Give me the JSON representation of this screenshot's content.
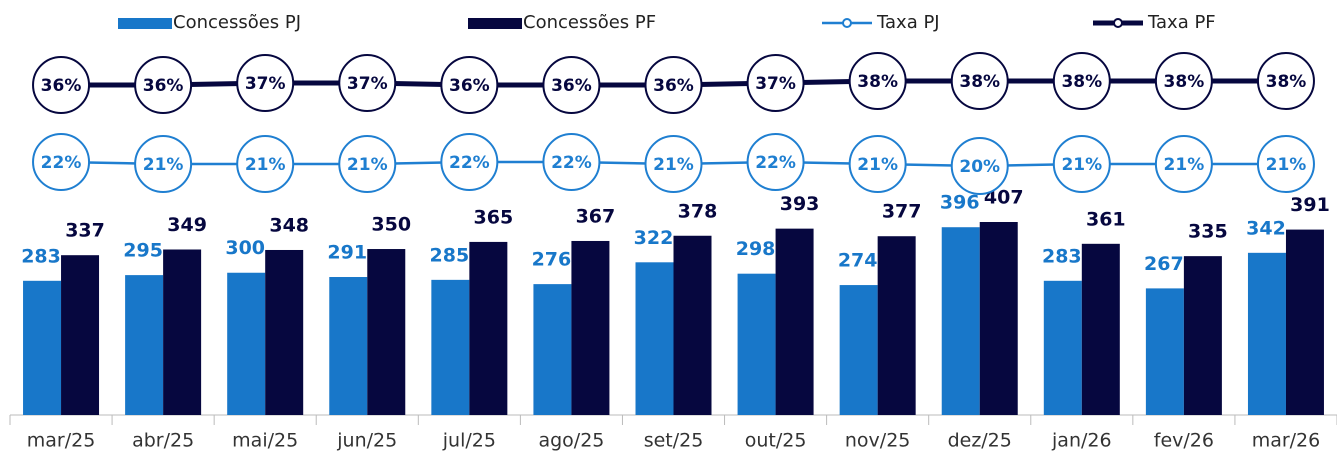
{
  "chart_data": {
    "type": "bar",
    "categories": [
      "mar/25",
      "abr/25",
      "mai/25",
      "jun/25",
      "jul/25",
      "ago/25",
      "set/25",
      "out/25",
      "nov/25",
      "dez/25",
      "jan/26",
      "fev/26",
      "mar/26"
    ],
    "series": [
      {
        "name": "Concessões PJ",
        "color": "#1877c9",
        "values": [
          283,
          295,
          300,
          291,
          285,
          276,
          322,
          298,
          274,
          396,
          283,
          267,
          342
        ]
      },
      {
        "name": "Concessões PF",
        "color": "#06073f",
        "values": [
          337,
          349,
          348,
          350,
          365,
          367,
          378,
          393,
          377,
          407,
          361,
          335,
          391
        ]
      },
      {
        "name": "Taxa PJ",
        "type": "line",
        "color": "#1f7fd1",
        "values": [
          22,
          21,
          21,
          21,
          22,
          22,
          21,
          22,
          21,
          20,
          21,
          21,
          21
        ],
        "value_labels": [
          "22%",
          "21%",
          "21%",
          "21%",
          "22%",
          "22%",
          "21%",
          "22%",
          "21%",
          "20%",
          "21%",
          "21%",
          "21%"
        ]
      },
      {
        "name": "Taxa PF",
        "type": "line",
        "color": "#06073f",
        "values": [
          36,
          36,
          37,
          37,
          36,
          36,
          36,
          37,
          38,
          38,
          38,
          38,
          38
        ],
        "value_labels": [
          "36%",
          "36%",
          "37%",
          "37%",
          "36%",
          "36%",
          "36%",
          "37%",
          "38%",
          "38%",
          "38%",
          "38%",
          "38%"
        ]
      }
    ]
  }
}
